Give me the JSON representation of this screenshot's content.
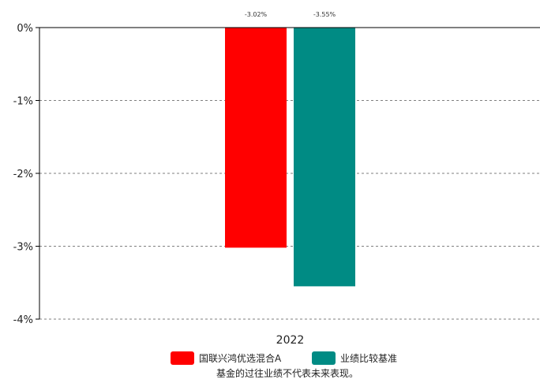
{
  "chart_data": {
    "type": "bar",
    "categories": [
      "2022"
    ],
    "series": [
      {
        "name": "国联兴鸿优选混合A",
        "values": [
          -3.02
        ],
        "color": "#ff0000",
        "label": "-3.02%"
      },
      {
        "name": "业绩比较基准",
        "values": [
          -3.55
        ],
        "color": "#008b84",
        "label": "-3.55%"
      }
    ],
    "ylim": [
      -4,
      0
    ],
    "yticks": [
      0,
      -1,
      -2,
      -3,
      -4
    ],
    "ytick_labels": [
      "0%",
      "-1%",
      "-2%",
      "-3%",
      "-4%"
    ],
    "grid": true,
    "legend_position": "bottom",
    "note": "基金的过往业绩不代表未来表现。"
  }
}
